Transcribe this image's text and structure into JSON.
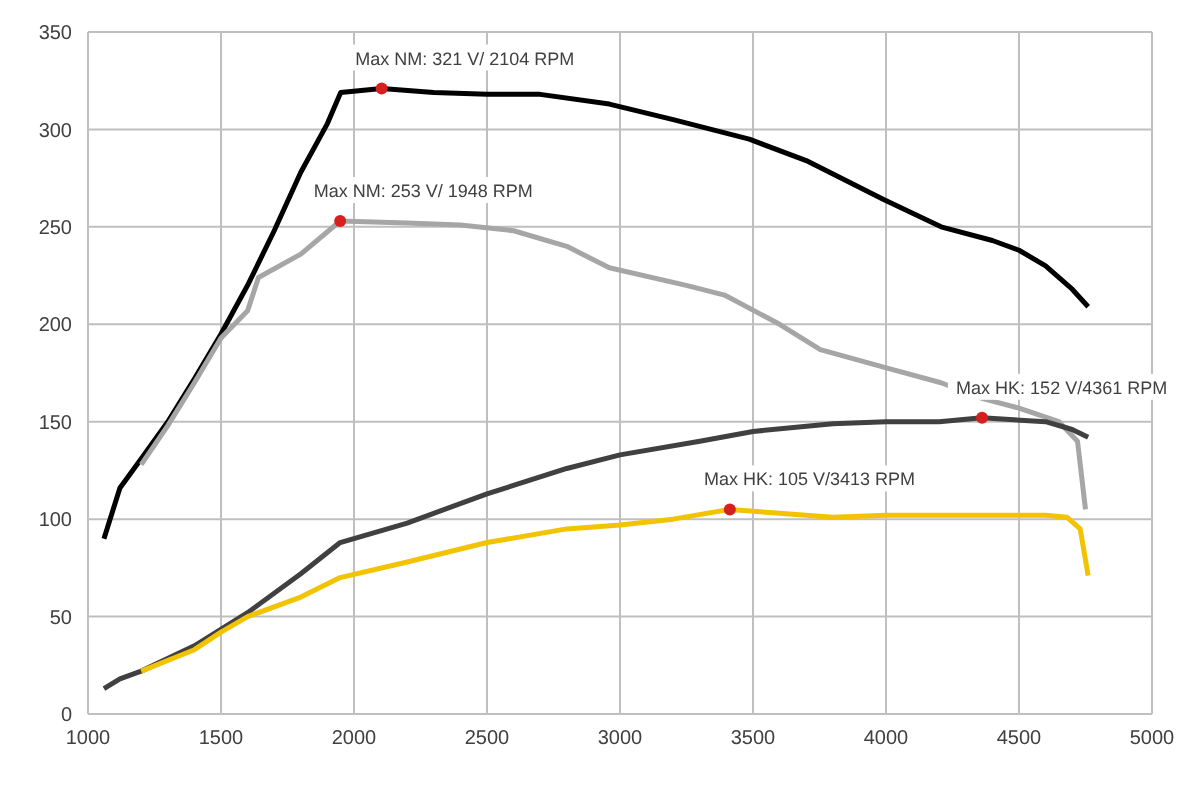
{
  "chart_data": {
    "type": "line",
    "xlim": [
      1000,
      5000
    ],
    "xticks": [
      1000,
      1500,
      2000,
      2500,
      3000,
      3500,
      4000,
      4500,
      5000
    ],
    "ylim": [
      0,
      350
    ],
    "yticks": [
      0,
      50,
      100,
      150,
      200,
      250,
      300,
      350
    ],
    "grid": true,
    "legend": false,
    "marker": "none",
    "line_style": "solid",
    "series": [
      {
        "color": "#000000",
        "x": [
          1060,
          1120,
          1200,
          1300,
          1400,
          1500,
          1600,
          1700,
          1800,
          1900,
          1950,
          2104,
          2300,
          2500,
          2700,
          2960,
          3200,
          3486,
          3700,
          3991,
          4207,
          4400,
          4500,
          4600,
          4700,
          4760
        ],
        "values": [
          90,
          116,
          131,
          150,
          172,
          195,
          220,
          248,
          278,
          303,
          319,
          321,
          319,
          318,
          318,
          313,
          305,
          295,
          284,
          264,
          250,
          243,
          238,
          230,
          218,
          209
        ]
      },
      {
        "color": "#a6a6a6",
        "x": [
          1200,
          1300,
          1400,
          1500,
          1600,
          1641,
          1800,
          1948,
          2200,
          2400,
          2600,
          2800,
          2960,
          3249,
          3393,
          3600,
          3753,
          3991,
          4207,
          4361,
          4500,
          4650,
          4720,
          4750
        ],
        "values": [
          128,
          148,
          170,
          193,
          207,
          224,
          236,
          253,
          252,
          251,
          248,
          240,
          229,
          220,
          215,
          200,
          187,
          178,
          170,
          162,
          157,
          150,
          140,
          105
        ]
      },
      {
        "color": "#404040",
        "x": [
          1060,
          1120,
          1200,
          1400,
          1600,
          1800,
          1948,
          2200,
          2500,
          2800,
          3000,
          3300,
          3500,
          3800,
          4000,
          4200,
          4361,
          4600,
          4700,
          4760
        ],
        "values": [
          13,
          18,
          22,
          35,
          52,
          72,
          88,
          98,
          113,
          126,
          133,
          140,
          145,
          149,
          150,
          150,
          152,
          150,
          146,
          142
        ]
      },
      {
        "color": "#f2c300",
        "x": [
          1200,
          1400,
          1500,
          1600,
          1800,
          1948,
          2200,
          2500,
          2800,
          3000,
          3200,
          3413,
          3600,
          3800,
          4000,
          4300,
          4600,
          4680,
          4730,
          4760
        ],
        "values": [
          22,
          33,
          42,
          50,
          60,
          70,
          78,
          88,
          95,
          97,
          100,
          105,
          103,
          101,
          102,
          102,
          102,
          101,
          95,
          71
        ]
      }
    ],
    "annotations": [
      {
        "text": "Max NM: 321 V/ 2104 RPM",
        "x": 2104,
        "y": 321
      },
      {
        "text": "Max NM: 253 V/ 1948 RPM",
        "x": 1948,
        "y": 253
      },
      {
        "text": "Max HK: 152 V/4361 RPM",
        "x": 4361,
        "y": 152
      },
      {
        "text": "Max HK: 105 V/3413 RPM",
        "x": 3413,
        "y": 105
      }
    ]
  }
}
